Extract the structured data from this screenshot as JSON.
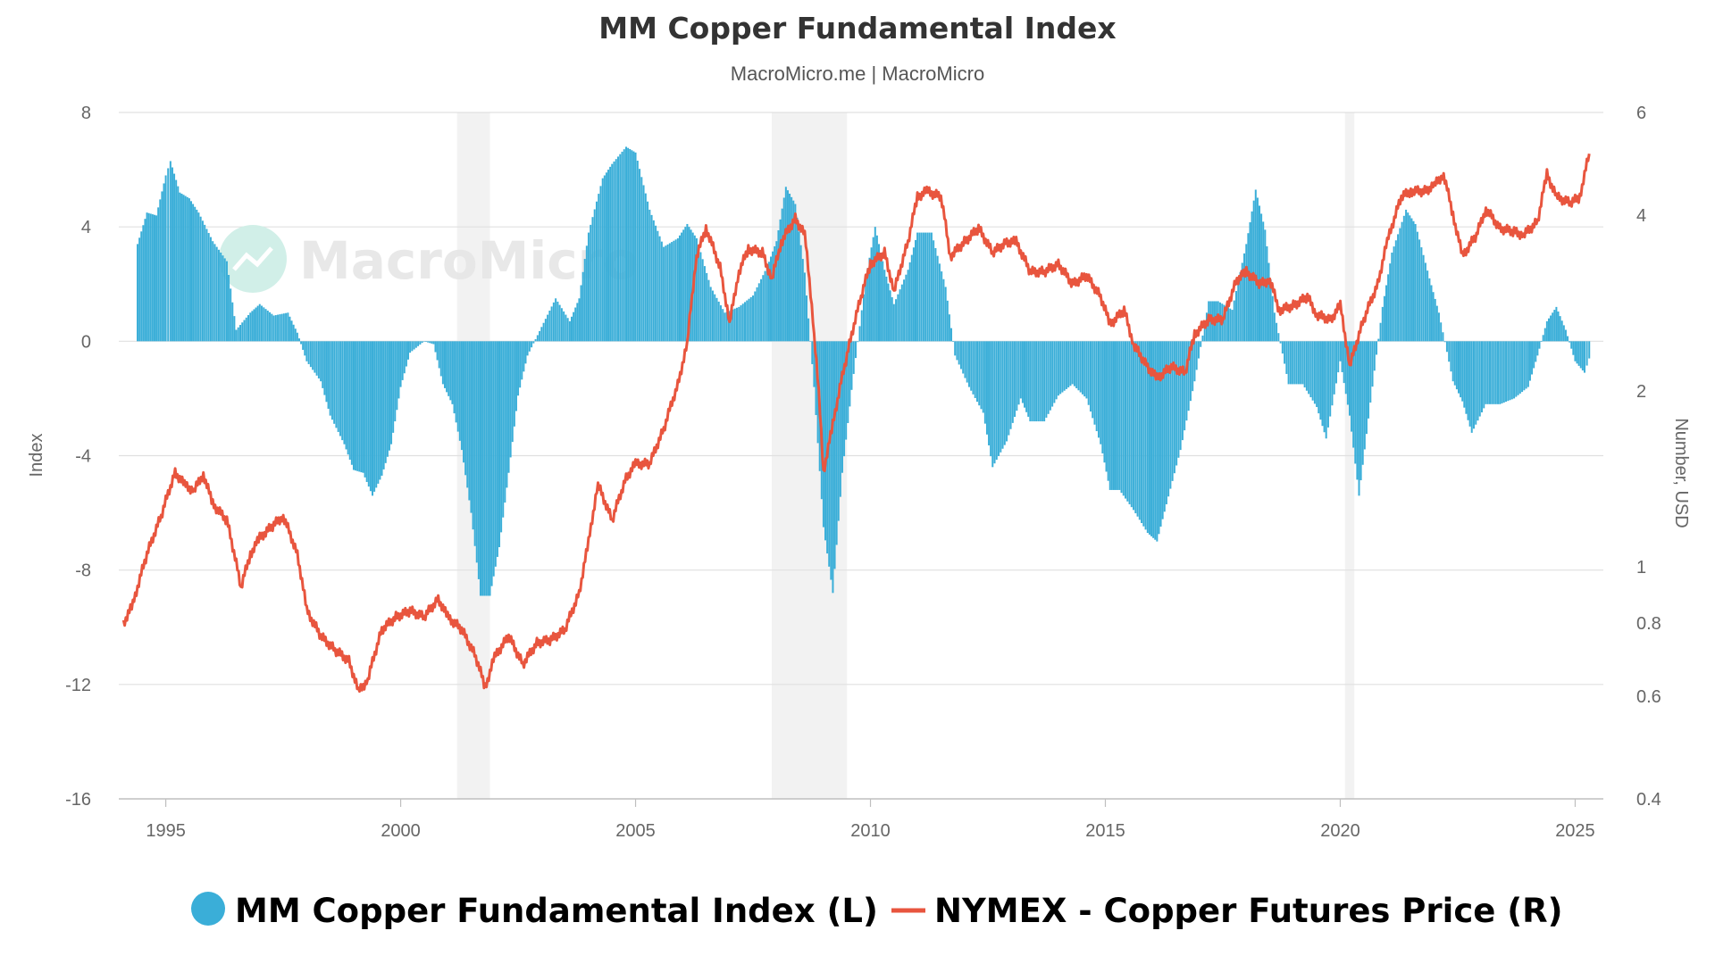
{
  "chart_data": {
    "type": "bar+line",
    "title": "MM Copper Fundamental Index",
    "subtitle": "MacroMicro.me | MacroMicro",
    "watermark": "MacroMicro",
    "left_axis": {
      "label": "Index",
      "min": -16,
      "max": 8,
      "ticks": [
        8,
        4,
        0,
        -4,
        -8,
        -12,
        -16
      ],
      "tick_labels": [
        "8",
        "4",
        "0",
        "-4",
        "-8",
        "-12",
        "-16"
      ]
    },
    "right_axis": {
      "label": "Number, USD",
      "scale": "log",
      "min": 0.4,
      "max": 6,
      "ticks": [
        6,
        4,
        2,
        1,
        0.8,
        0.6,
        0.4
      ],
      "tick_labels": [
        "6",
        "4",
        "2",
        "1",
        "0.8",
        "0.6",
        "0.4"
      ]
    },
    "x_axis": {
      "min": 1994.0,
      "max": 2025.6,
      "ticks": [
        1995,
        2000,
        2005,
        2010,
        2015,
        2020,
        2025
      ],
      "tick_labels": [
        "1995",
        "2000",
        "2005",
        "2010",
        "2015",
        "2020",
        "2025"
      ]
    },
    "grid": true,
    "legend_position": "bottom",
    "recession_bands": [
      [
        2001.2,
        2001.9
      ],
      [
        2007.9,
        2009.5
      ],
      [
        2020.1,
        2020.3
      ]
    ],
    "colors": {
      "index_bars": "#3aaed8",
      "copper_line": "#e8553e",
      "grid": "#e0e0e0",
      "recession": "#f2f2f2"
    },
    "series": [
      {
        "name": "MM Copper Fundamental Index (L)",
        "type": "bar",
        "axis": "left",
        "points": [
          [
            1994.4,
            3.4
          ],
          [
            1994.6,
            4.5
          ],
          [
            1994.8,
            4.4
          ],
          [
            1995.0,
            5.8
          ],
          [
            1995.1,
            6.3
          ],
          [
            1995.3,
            5.2
          ],
          [
            1995.5,
            5.0
          ],
          [
            1995.7,
            4.5
          ],
          [
            1996.0,
            3.5
          ],
          [
            1996.3,
            2.8
          ],
          [
            1996.5,
            0.4
          ],
          [
            1996.8,
            1.0
          ],
          [
            1997.0,
            1.3
          ],
          [
            1997.3,
            0.9
          ],
          [
            1997.6,
            1.0
          ],
          [
            1997.8,
            0.3
          ],
          [
            1998.0,
            -0.7
          ],
          [
            1998.3,
            -1.4
          ],
          [
            1998.5,
            -2.6
          ],
          [
            1998.8,
            -3.6
          ],
          [
            1999.0,
            -4.5
          ],
          [
            1999.2,
            -4.6
          ],
          [
            1999.4,
            -5.4
          ],
          [
            1999.6,
            -4.7
          ],
          [
            1999.8,
            -3.6
          ],
          [
            2000.0,
            -1.6
          ],
          [
            2000.2,
            -0.4
          ],
          [
            2000.5,
            0.0
          ],
          [
            2000.7,
            -0.1
          ],
          [
            2000.9,
            -1.5
          ],
          [
            2001.1,
            -2.2
          ],
          [
            2001.3,
            -3.8
          ],
          [
            2001.5,
            -6.0
          ],
          [
            2001.7,
            -8.9
          ],
          [
            2001.9,
            -8.9
          ],
          [
            2002.1,
            -7.2
          ],
          [
            2002.3,
            -4.6
          ],
          [
            2002.5,
            -1.9
          ],
          [
            2002.7,
            -0.5
          ],
          [
            2003.0,
            0.5
          ],
          [
            2003.3,
            1.5
          ],
          [
            2003.6,
            0.7
          ],
          [
            2003.8,
            1.5
          ],
          [
            2004.0,
            3.8
          ],
          [
            2004.3,
            5.7
          ],
          [
            2004.5,
            6.2
          ],
          [
            2004.8,
            6.8
          ],
          [
            2005.0,
            6.6
          ],
          [
            2005.3,
            4.6
          ],
          [
            2005.6,
            3.3
          ],
          [
            2005.9,
            3.6
          ],
          [
            2006.1,
            4.1
          ],
          [
            2006.3,
            3.6
          ],
          [
            2006.6,
            1.9
          ],
          [
            2006.9,
            1.0
          ],
          [
            2007.2,
            1.2
          ],
          [
            2007.5,
            1.6
          ],
          [
            2007.8,
            2.6
          ],
          [
            2008.0,
            3.5
          ],
          [
            2008.2,
            5.4
          ],
          [
            2008.4,
            4.8
          ],
          [
            2008.6,
            2.4
          ],
          [
            2008.8,
            -1.6
          ],
          [
            2009.0,
            -6.5
          ],
          [
            2009.2,
            -8.8
          ],
          [
            2009.4,
            -4.6
          ],
          [
            2009.6,
            -1.7
          ],
          [
            2009.9,
            2.2
          ],
          [
            2010.1,
            4.0
          ],
          [
            2010.3,
            2.5
          ],
          [
            2010.5,
            1.3
          ],
          [
            2010.8,
            2.5
          ],
          [
            2011.0,
            3.8
          ],
          [
            2011.3,
            3.8
          ],
          [
            2011.6,
            1.9
          ],
          [
            2011.8,
            -0.5
          ],
          [
            2012.1,
            -1.6
          ],
          [
            2012.4,
            -2.5
          ],
          [
            2012.6,
            -4.4
          ],
          [
            2012.9,
            -3.5
          ],
          [
            2013.2,
            -2.0
          ],
          [
            2013.4,
            -2.8
          ],
          [
            2013.7,
            -2.8
          ],
          [
            2014.0,
            -1.9
          ],
          [
            2014.3,
            -1.5
          ],
          [
            2014.6,
            -2.0
          ],
          [
            2014.9,
            -3.6
          ],
          [
            2015.1,
            -5.2
          ],
          [
            2015.3,
            -5.2
          ],
          [
            2015.6,
            -5.9
          ],
          [
            2015.9,
            -6.7
          ],
          [
            2016.1,
            -7.0
          ],
          [
            2016.3,
            -5.7
          ],
          [
            2016.6,
            -3.8
          ],
          [
            2016.9,
            -1.4
          ],
          [
            2017.2,
            1.4
          ],
          [
            2017.4,
            1.4
          ],
          [
            2017.7,
            1.1
          ],
          [
            2018.0,
            3.4
          ],
          [
            2018.2,
            5.3
          ],
          [
            2018.4,
            3.9
          ],
          [
            2018.6,
            1.0
          ],
          [
            2018.9,
            -1.5
          ],
          [
            2019.2,
            -1.5
          ],
          [
            2019.5,
            -2.3
          ],
          [
            2019.7,
            -3.4
          ],
          [
            2020.0,
            -0.7
          ],
          [
            2020.2,
            -2.6
          ],
          [
            2020.4,
            -5.4
          ],
          [
            2020.6,
            -2.7
          ],
          [
            2020.9,
            1.2
          ],
          [
            2021.1,
            3.1
          ],
          [
            2021.4,
            4.6
          ],
          [
            2021.6,
            4.1
          ],
          [
            2021.9,
            2.2
          ],
          [
            2022.1,
            1.0
          ],
          [
            2022.4,
            -1.4
          ],
          [
            2022.6,
            -2.1
          ],
          [
            2022.8,
            -3.2
          ],
          [
            2023.1,
            -2.2
          ],
          [
            2023.4,
            -2.2
          ],
          [
            2023.7,
            -2.0
          ],
          [
            2024.0,
            -1.6
          ],
          [
            2024.2,
            -0.5
          ],
          [
            2024.4,
            0.7
          ],
          [
            2024.6,
            1.2
          ],
          [
            2024.8,
            0.4
          ],
          [
            2025.0,
            -0.7
          ],
          [
            2025.2,
            -1.1
          ],
          [
            2025.3,
            -0.6
          ]
        ]
      },
      {
        "name": "NYMEX - Copper Futures Price (R)",
        "type": "line",
        "axis": "right",
        "points": [
          [
            1994.1,
            0.8
          ],
          [
            1994.3,
            0.86
          ],
          [
            1994.6,
            1.05
          ],
          [
            1994.9,
            1.22
          ],
          [
            1995.2,
            1.45
          ],
          [
            1995.4,
            1.38
          ],
          [
            1995.6,
            1.35
          ],
          [
            1995.8,
            1.44
          ],
          [
            1996.0,
            1.28
          ],
          [
            1996.3,
            1.2
          ],
          [
            1996.6,
            0.92
          ],
          [
            1996.8,
            1.05
          ],
          [
            1997.0,
            1.12
          ],
          [
            1997.3,
            1.18
          ],
          [
            1997.5,
            1.22
          ],
          [
            1997.8,
            1.05
          ],
          [
            1998.0,
            0.84
          ],
          [
            1998.3,
            0.76
          ],
          [
            1998.6,
            0.72
          ],
          [
            1998.9,
            0.69
          ],
          [
            1999.1,
            0.61
          ],
          [
            1999.3,
            0.64
          ],
          [
            1999.6,
            0.78
          ],
          [
            1999.9,
            0.82
          ],
          [
            2000.2,
            0.84
          ],
          [
            2000.5,
            0.82
          ],
          [
            2000.8,
            0.88
          ],
          [
            2001.0,
            0.82
          ],
          [
            2001.3,
            0.78
          ],
          [
            2001.6,
            0.7
          ],
          [
            2001.8,
            0.62
          ],
          [
            2002.0,
            0.7
          ],
          [
            2002.3,
            0.76
          ],
          [
            2002.6,
            0.68
          ],
          [
            2002.9,
            0.74
          ],
          [
            2003.2,
            0.75
          ],
          [
            2003.5,
            0.78
          ],
          [
            2003.8,
            0.9
          ],
          [
            2004.0,
            1.1
          ],
          [
            2004.2,
            1.38
          ],
          [
            2004.5,
            1.2
          ],
          [
            2004.8,
            1.42
          ],
          [
            2005.0,
            1.5
          ],
          [
            2005.3,
            1.5
          ],
          [
            2005.6,
            1.72
          ],
          [
            2005.9,
            2.05
          ],
          [
            2006.1,
            2.4
          ],
          [
            2006.3,
            3.4
          ],
          [
            2006.5,
            3.8
          ],
          [
            2006.8,
            3.25
          ],
          [
            2007.0,
            2.6
          ],
          [
            2007.2,
            3.2
          ],
          [
            2007.4,
            3.5
          ],
          [
            2007.7,
            3.45
          ],
          [
            2007.9,
            3.1
          ],
          [
            2008.1,
            3.6
          ],
          [
            2008.4,
            3.95
          ],
          [
            2008.6,
            3.7
          ],
          [
            2008.8,
            2.5
          ],
          [
            2009.0,
            1.45
          ],
          [
            2009.2,
            1.75
          ],
          [
            2009.5,
            2.3
          ],
          [
            2009.8,
            2.9
          ],
          [
            2010.0,
            3.3
          ],
          [
            2010.3,
            3.45
          ],
          [
            2010.5,
            2.95
          ],
          [
            2010.8,
            3.6
          ],
          [
            2011.0,
            4.3
          ],
          [
            2011.2,
            4.4
          ],
          [
            2011.5,
            4.3
          ],
          [
            2011.7,
            3.4
          ],
          [
            2012.0,
            3.6
          ],
          [
            2012.3,
            3.8
          ],
          [
            2012.6,
            3.45
          ],
          [
            2012.9,
            3.6
          ],
          [
            2013.1,
            3.6
          ],
          [
            2013.4,
            3.2
          ],
          [
            2013.7,
            3.2
          ],
          [
            2014.0,
            3.3
          ],
          [
            2014.3,
            3.05
          ],
          [
            2014.6,
            3.15
          ],
          [
            2014.9,
            2.9
          ],
          [
            2015.1,
            2.6
          ],
          [
            2015.4,
            2.75
          ],
          [
            2015.6,
            2.4
          ],
          [
            2015.9,
            2.2
          ],
          [
            2016.1,
            2.1
          ],
          [
            2016.4,
            2.2
          ],
          [
            2016.7,
            2.15
          ],
          [
            2016.9,
            2.5
          ],
          [
            2017.2,
            2.65
          ],
          [
            2017.5,
            2.65
          ],
          [
            2017.8,
            3.1
          ],
          [
            2018.0,
            3.2
          ],
          [
            2018.3,
            3.05
          ],
          [
            2018.5,
            3.1
          ],
          [
            2018.7,
            2.75
          ],
          [
            2019.0,
            2.8
          ],
          [
            2019.3,
            2.9
          ],
          [
            2019.5,
            2.7
          ],
          [
            2019.8,
            2.65
          ],
          [
            2020.0,
            2.8
          ],
          [
            2020.2,
            2.2
          ],
          [
            2020.5,
            2.65
          ],
          [
            2020.8,
            3.05
          ],
          [
            2021.0,
            3.6
          ],
          [
            2021.3,
            4.3
          ],
          [
            2021.5,
            4.4
          ],
          [
            2021.8,
            4.4
          ],
          [
            2022.0,
            4.5
          ],
          [
            2022.2,
            4.7
          ],
          [
            2022.4,
            4.0
          ],
          [
            2022.6,
            3.4
          ],
          [
            2022.9,
            3.7
          ],
          [
            2023.1,
            4.1
          ],
          [
            2023.4,
            3.8
          ],
          [
            2023.7,
            3.75
          ],
          [
            2023.9,
            3.7
          ],
          [
            2024.2,
            3.9
          ],
          [
            2024.4,
            4.7
          ],
          [
            2024.6,
            4.3
          ],
          [
            2024.9,
            4.2
          ],
          [
            2025.1,
            4.3
          ],
          [
            2025.3,
            5.1
          ]
        ]
      }
    ]
  }
}
